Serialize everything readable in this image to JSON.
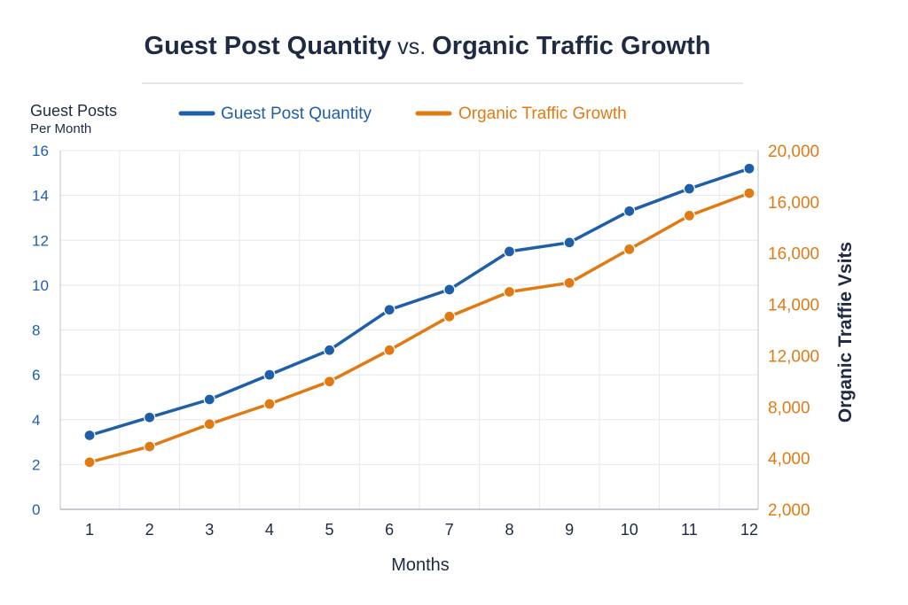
{
  "chart_data": {
    "type": "line",
    "title": {
      "part1": "Guest Post Quantity",
      "vs": "vs.",
      "part2": "Organic Traffic Growth"
    },
    "xlabel": "Months",
    "ylabel_left": "Guest Posts",
    "ylabel_left_sub": "Per Month",
    "ylabel_right": "Organic Traffie Vsits",
    "x": [
      1,
      2,
      3,
      4,
      5,
      6,
      7,
      8,
      9,
      10,
      11,
      12
    ],
    "x_tick_labels": [
      "1",
      "2",
      "3",
      "4",
      "5",
      "6",
      "7",
      "8",
      "9",
      "10",
      "11",
      "12"
    ],
    "ylim_left": [
      0,
      16
    ],
    "yticks_left": [
      "0",
      "2",
      "4",
      "6",
      "8",
      "10",
      "12",
      "14",
      "16"
    ],
    "yticks_right": [
      "2,000",
      "4,000",
      "8,000",
      "12,000",
      "14,000",
      "16,000",
      "16,000",
      "20,000"
    ],
    "grid": true,
    "legend_position": "top",
    "series": [
      {
        "name": "Guest Post Quantity",
        "axis": "left",
        "color": "#1f5fa8",
        "values": [
          3.3,
          4.1,
          4.9,
          6.0,
          7.1,
          8.9,
          9.8,
          11.5,
          11.9,
          13.3,
          14.3,
          15.2
        ]
      },
      {
        "name": "Organic Traffic Growth",
        "axis": "left",
        "color": "#e07b14",
        "values": [
          2.1,
          2.8,
          3.8,
          4.7,
          5.7,
          7.1,
          8.6,
          9.7,
          10.1,
          11.6,
          13.1,
          14.1
        ]
      }
    ]
  }
}
